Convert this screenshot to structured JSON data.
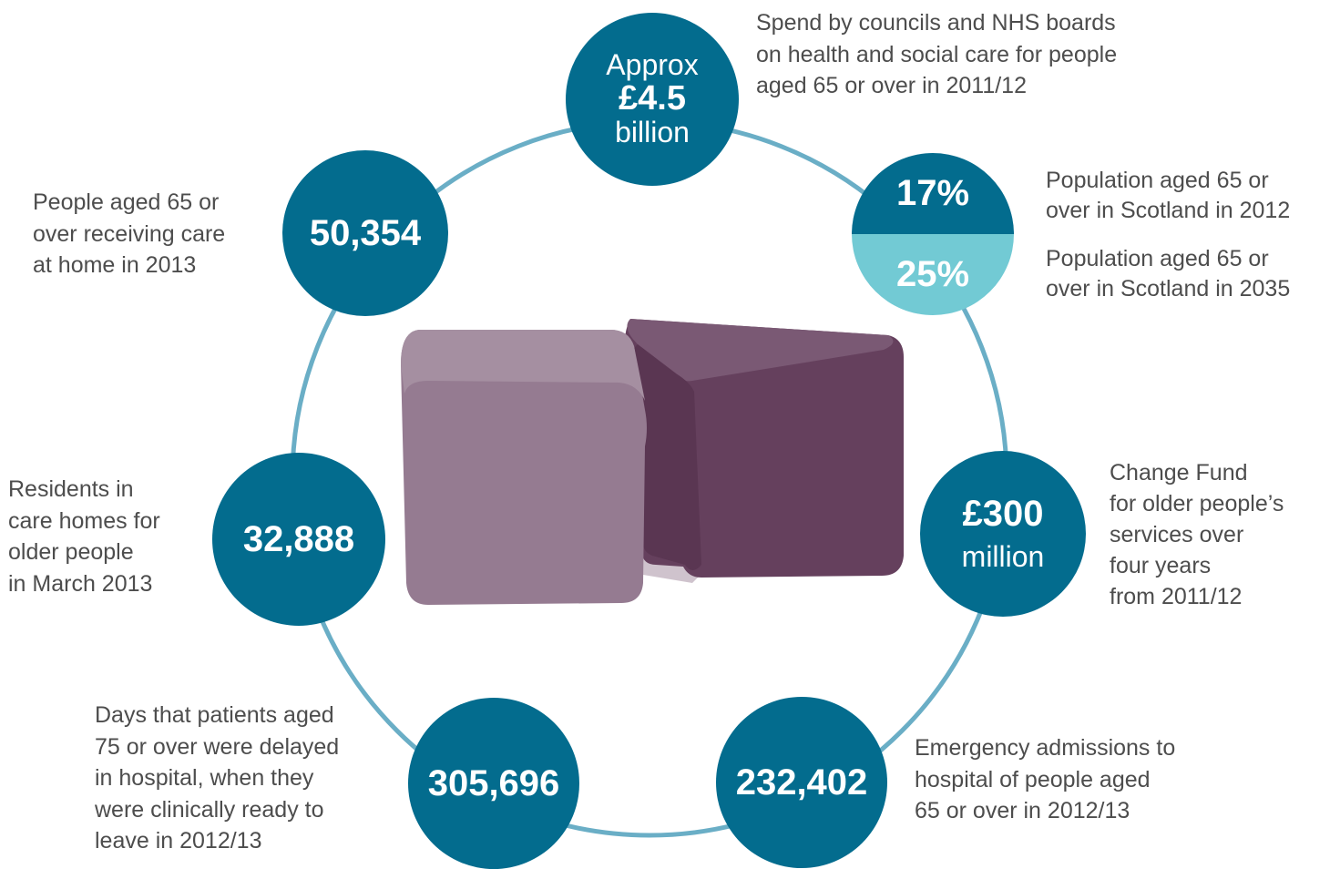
{
  "spend": {
    "line1": "Approx",
    "value": "£4.5",
    "line3": "billion",
    "caption": [
      "Spend by councils and NHS boards",
      "on health and social care for people",
      "aged 65 or over in 2011/12"
    ]
  },
  "population": {
    "value_2012": "17%",
    "caption_2012": [
      "Population aged 65 or",
      "over in Scotland in 2012"
    ],
    "value_2035": "25%",
    "caption_2035": [
      "Population aged 65 or",
      "over in Scotland in 2035"
    ]
  },
  "change_fund": {
    "value": "£300",
    "unit": "million",
    "caption": [
      "Change Fund",
      "for older people’s",
      "services over",
      "four years",
      "from 2011/12"
    ]
  },
  "emergency": {
    "value": "232,402",
    "caption": [
      "Emergency admissions to",
      "hospital of people aged",
      "65 or over in 2012/13"
    ]
  },
  "delayed": {
    "value": "305,696",
    "caption": [
      "Days that patients aged",
      "75 or over were delayed",
      "in hospital, when they",
      "were clinically ready to",
      "leave in 2012/13"
    ]
  },
  "care_homes": {
    "value": "32,888",
    "caption": [
      "Residents in",
      "care homes for",
      "older people",
      "in March 2013"
    ]
  },
  "care_at_home": {
    "value": "50,354",
    "caption": [
      "People aged 65 or",
      "over receiving care",
      "at home in 2013"
    ]
  },
  "colors": {
    "circle": "#036c8e",
    "circle_light": "#72cad4",
    "ring": "#6aaec6",
    "cube_light": "#957b91",
    "cube_dark": "#65405d"
  }
}
